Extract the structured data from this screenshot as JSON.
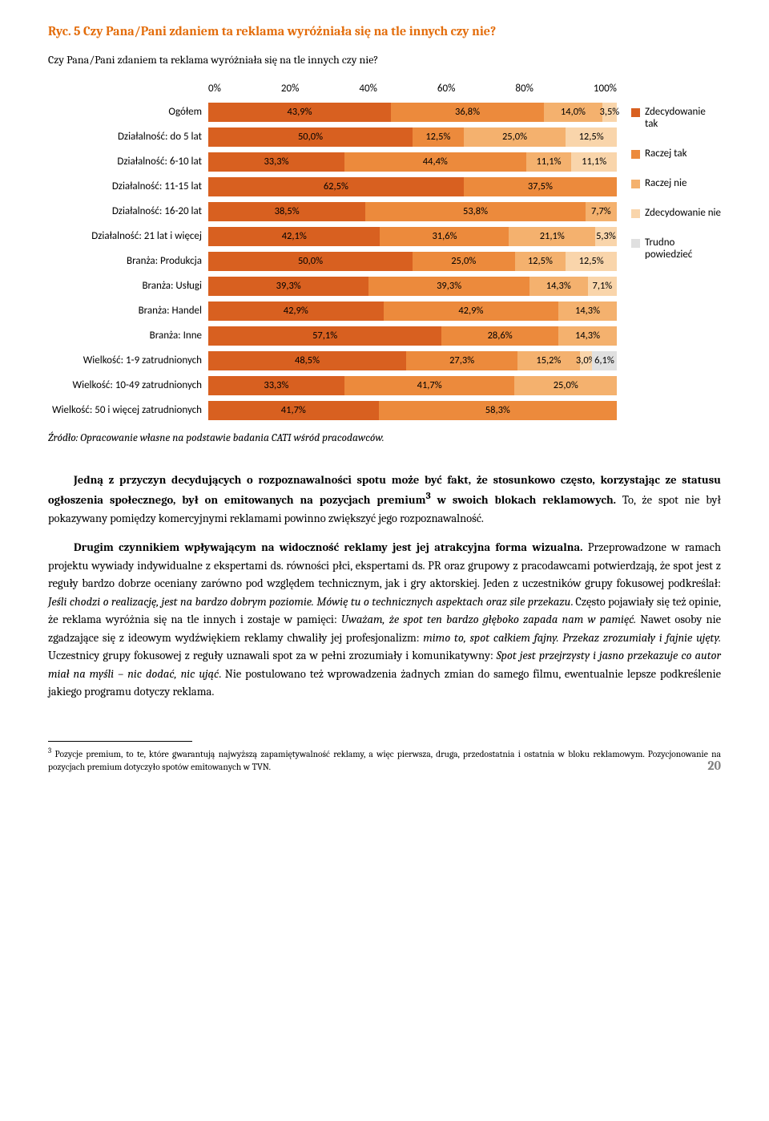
{
  "figTitle": "Ryc. 5 Czy Pana/Pani zdaniem ta reklama wyróżniała się na tle innych czy nie?",
  "subtitle": "Czy Pana/Pani zdaniem ta reklama wyróżniała się na tle innych czy nie?",
  "chart": {
    "type": "stacked-bar-horizontal",
    "xticks": [
      "0%",
      "20%",
      "40%",
      "60%",
      "80%",
      "100%"
    ],
    "colors": [
      "#d86020",
      "#ec8a3c",
      "#f4b16e",
      "#f9d5ab",
      "#e0e0e0"
    ],
    "legendLabels": [
      "Zdecydowanie tak",
      "Raczej tak",
      "Raczej nie",
      "Zdecydowanie nie",
      "Trudno powiedzieć"
    ],
    "rows": [
      {
        "label": "Ogółem",
        "values": [
          43.9,
          36.8,
          14.0,
          3.5,
          0
        ],
        "labels": [
          "43,9%",
          "36,8%",
          "14,0%",
          "3,5%",
          ""
        ]
      },
      {
        "label": "Działalność: do 5 lat",
        "values": [
          50.0,
          12.5,
          25.0,
          12.5,
          0
        ],
        "labels": [
          "50,0%",
          "12,5%",
          "25,0%",
          "12,5%",
          ""
        ]
      },
      {
        "label": "Działalność: 6-10 lat",
        "values": [
          33.3,
          44.4,
          11.1,
          11.1,
          0
        ],
        "labels": [
          "33,3%",
          "44,4%",
          "11,1%",
          "11,1%",
          ""
        ]
      },
      {
        "label": "Działalność: 11-15 lat",
        "values": [
          62.5,
          37.5,
          0,
          0,
          0
        ],
        "labels": [
          "62,5%",
          "37,5%",
          "",
          "",
          ""
        ]
      },
      {
        "label": "Działalność: 16-20 lat",
        "values": [
          38.5,
          53.8,
          7.7,
          0,
          0
        ],
        "labels": [
          "38,5%",
          "53,8%",
          "7,7%",
          "",
          ""
        ]
      },
      {
        "label": "Działalność: 21 lat i więcej",
        "values": [
          42.1,
          31.6,
          21.1,
          5.3,
          0
        ],
        "labels": [
          "42,1%",
          "31,6%",
          "21,1%",
          "5,3%",
          ""
        ]
      },
      {
        "label": "Branża: Produkcja",
        "values": [
          50.0,
          25.0,
          12.5,
          12.5,
          0
        ],
        "labels": [
          "50,0%",
          "25,0%",
          "12,5%",
          "12,5%",
          ""
        ]
      },
      {
        "label": "Branża: Usługi",
        "values": [
          39.3,
          39.3,
          14.3,
          7.1,
          0
        ],
        "labels": [
          "39,3%",
          "39,3%",
          "14,3%",
          "7,1%",
          ""
        ]
      },
      {
        "label": "Branża: Handel",
        "values": [
          42.9,
          42.9,
          14.3,
          0,
          0
        ],
        "labels": [
          "42,9%",
          "42,9%",
          "14,3%",
          "",
          ""
        ]
      },
      {
        "label": "Branża: Inne",
        "values": [
          57.1,
          28.6,
          14.3,
          0,
          0
        ],
        "labels": [
          "57,1%",
          "28,6%",
          "14,3%",
          "",
          ""
        ]
      },
      {
        "label": "Wielkość: 1-9 zatrudnionych",
        "values": [
          48.5,
          27.3,
          15.2,
          3.0,
          6.1
        ],
        "labels": [
          "48,5%",
          "27,3%",
          "15,2%",
          "3,0%",
          "6,1%"
        ]
      },
      {
        "label": "Wielkość: 10-49 zatrudnionych",
        "values": [
          33.3,
          41.7,
          25.0,
          0,
          0
        ],
        "labels": [
          "33,3%",
          "41,7%",
          "25,0%",
          "",
          ""
        ]
      },
      {
        "label": "Wielkość: 50 i więcej  zatrudnionych",
        "values": [
          41.7,
          58.3,
          0,
          0,
          0
        ],
        "labels": [
          "41,7%",
          "58,3%",
          "",
          "",
          ""
        ]
      }
    ]
  },
  "source": "Źródło: Opracowanie własne na podstawie badania CATI wśród pracodawców.",
  "para1a": "Jedną z przyczyn decydujących o rozpoznawalności spotu może być fakt, że stosunkowo często, korzystając ze statusu ogłoszenia społecznego, był on emitowanych na pozycjach premium",
  "para1b": " w swoich blokach reklamowych.",
  "para1c": " To, że spot nie był pokazywany pomiędzy komercyjnymi reklamami powinno zwiększyć jego rozpoznawalność.",
  "para2a": "Drugim czynnikiem wpływającym na widoczność reklamy jest jej atrakcyjna forma wizualna.",
  "para2b": " Przeprowadzone w ramach projektu wywiady indywidualne z ekspertami ds. równości płci, ekspertami ds. PR oraz grupowy z pracodawcami potwierdzają, że spot jest z reguły bardzo dobrze oceniany zarówno pod względem technicznym, jak i gry aktorskiej. Jeden z uczestników grupy fokusowej podkreślał: ",
  "para2c": "Jeśli chodzi o realizację, jest na bardzo dobrym poziomie. Mówię tu o technicznych aspektach oraz sile przekazu",
  "para2d": ". Często pojawiały się też opinie, że reklama wyróżnia się na tle innych i zostaje w pamięci: ",
  "para2e": "Uważam, że spot ten bardzo głęboko zapada nam w pamięć.",
  "para2f": " Nawet osoby nie zgadzające się z ideowym wydźwiękiem reklamy chwaliły jej profesjonalizm: ",
  "para2g": "mimo to, spot całkiem fajny. Przekaz zrozumiały i fajnie ujęty.",
  "para2h": " Uczestnicy grupy fokusowej z reguły uznawali spot za w pełni zrozumiały i komunikatywny: ",
  "para2i": "Spot jest przejrzysty i jasno przekazuje co autor miał na myśli – nic dodać, nic ująć",
  "para2j": ". Nie postulowano też wprowadzenia żadnych zmian do samego filmu, ewentualnie lepsze podkreślenie jakiego programu dotyczy reklama.",
  "footnote": " Pozycje premium, to te, które gwarantują najwyższą zapamiętywalność reklamy, a więc pierwsza, druga, przedostatnia i ostatnia w bloku reklamowym. Pozycjonowanie na pozycjach premium dotyczyło spotów emitowanych w TVN.",
  "pageNum": "20"
}
